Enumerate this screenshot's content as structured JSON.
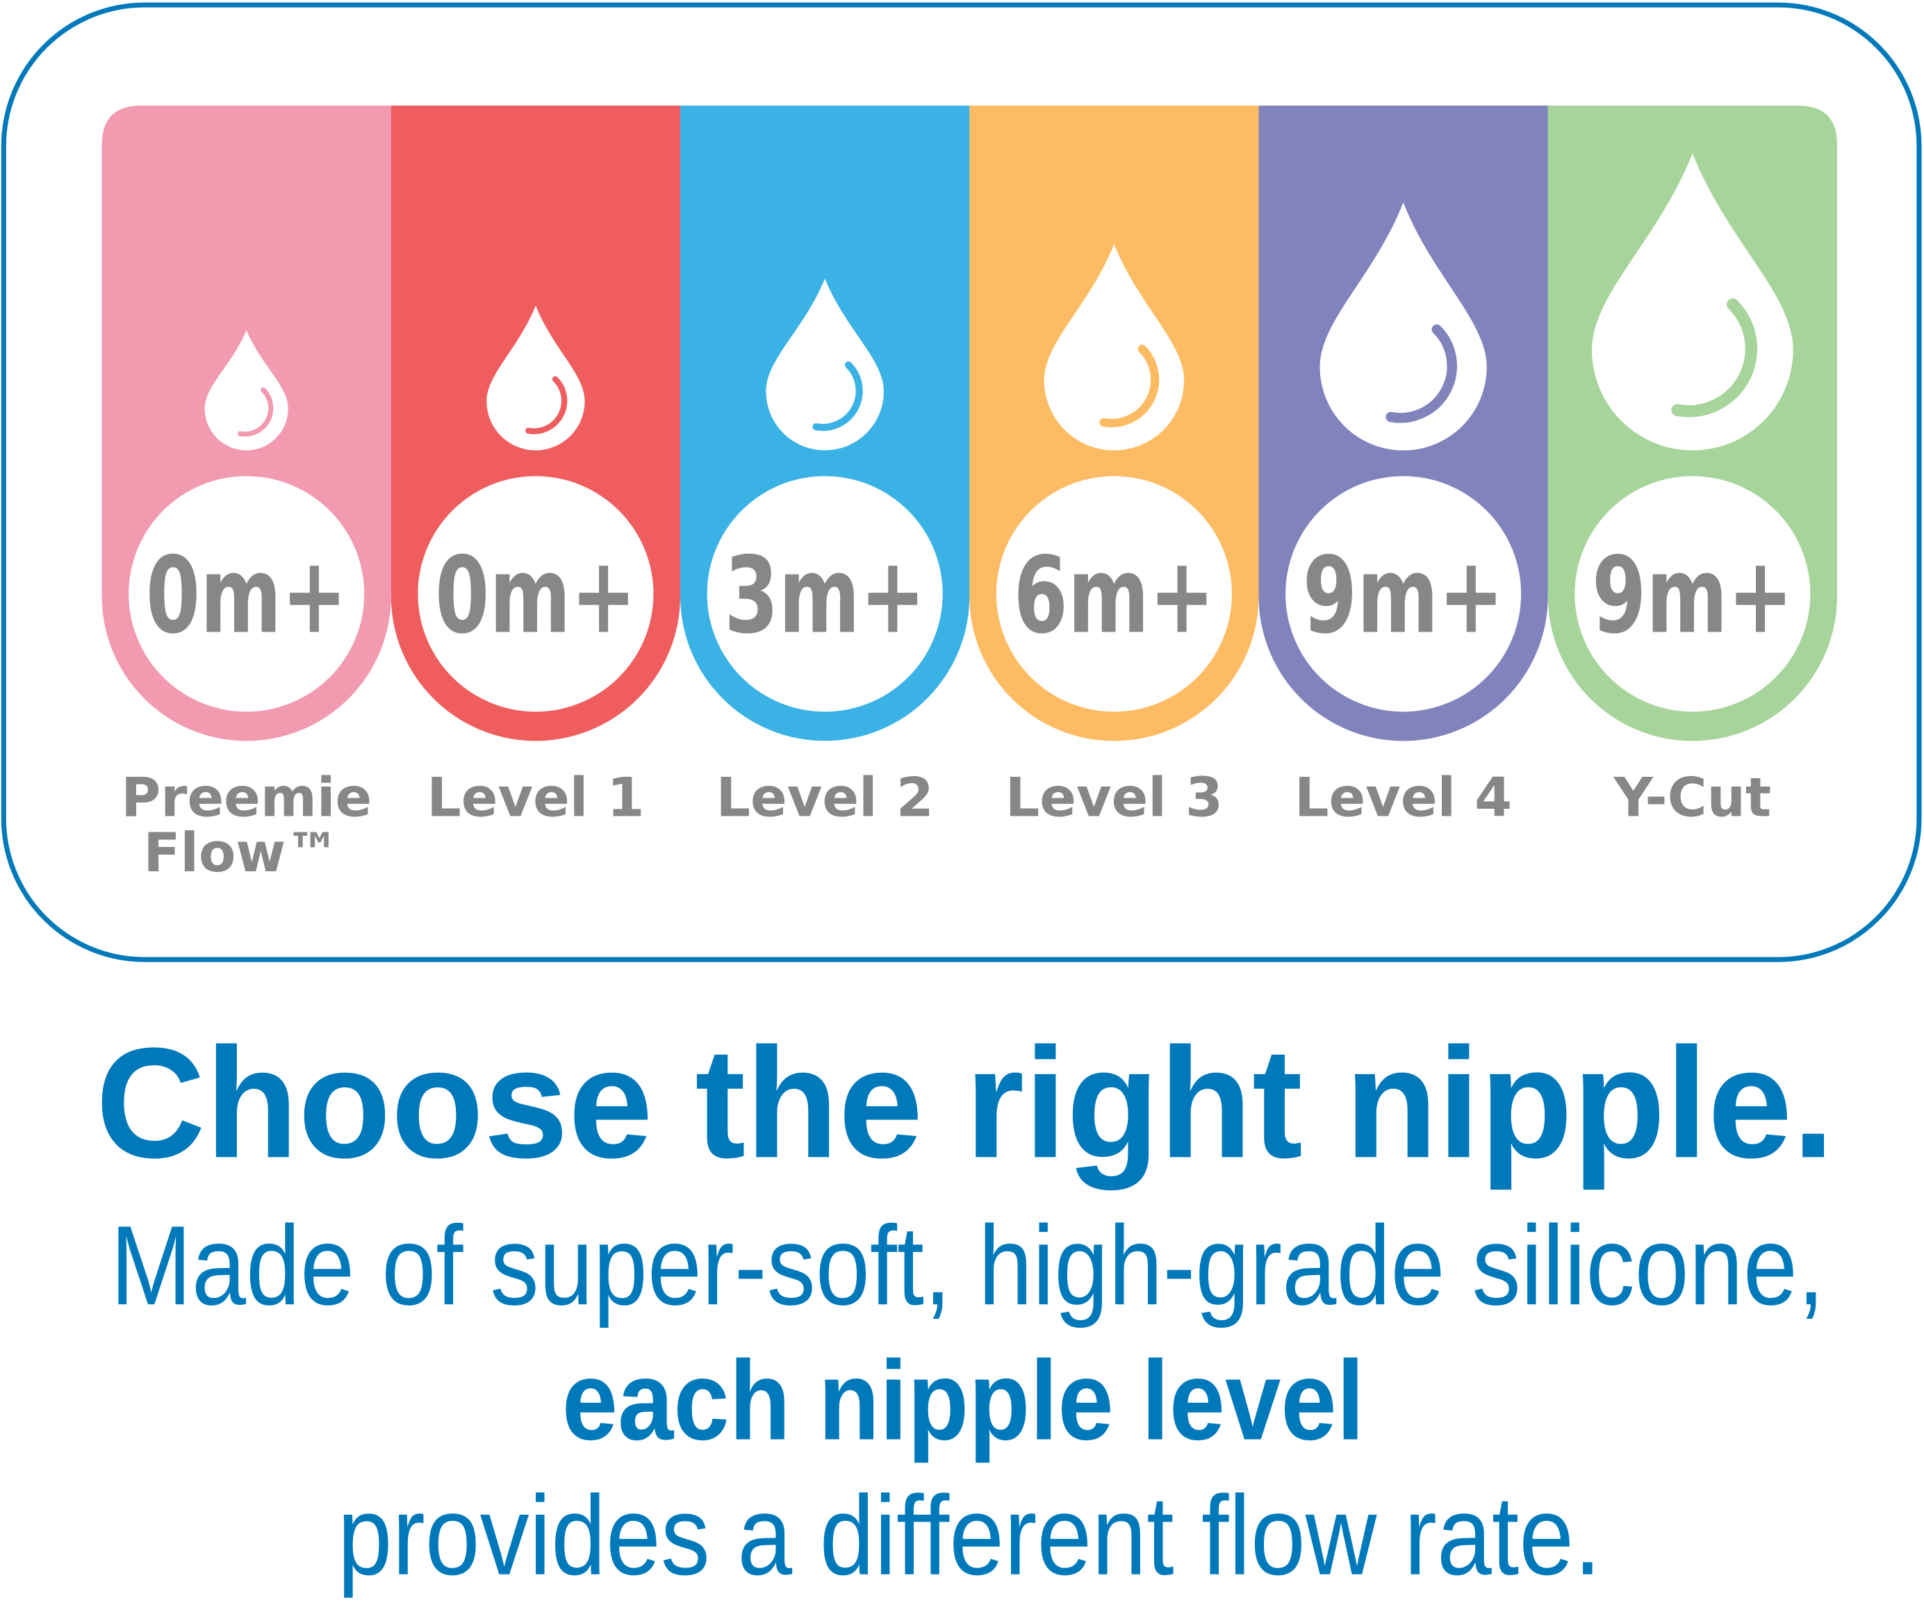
{
  "accent_color": "#0079BB",
  "label_color": "#878787",
  "nipples": [
    {
      "age": "0m+",
      "label": [
        "Preemie",
        "Flow™"
      ],
      "color": "#F29BB0"
    },
    {
      "age": "0m+",
      "label": [
        "Level 1"
      ],
      "color": "#EF5D5E"
    },
    {
      "age": "3m+",
      "label": [
        "Level 2"
      ],
      "color": "#3BB2E5"
    },
    {
      "age": "6m+",
      "label": [
        "Level 3"
      ],
      "color": "#FDBB63"
    },
    {
      "age": "9m+",
      "label": [
        "Level 4"
      ],
      "color": "#8183BD"
    },
    {
      "age": "9m+",
      "label": [
        "Y-Cut"
      ],
      "color": "#A7D49B"
    }
  ],
  "headline": "Choose the right nipple.",
  "body": {
    "line1": "Made of super-soft, high-grade silicone,",
    "line2_bold": "each nipple level",
    "line3": "provides a different flow rate."
  }
}
